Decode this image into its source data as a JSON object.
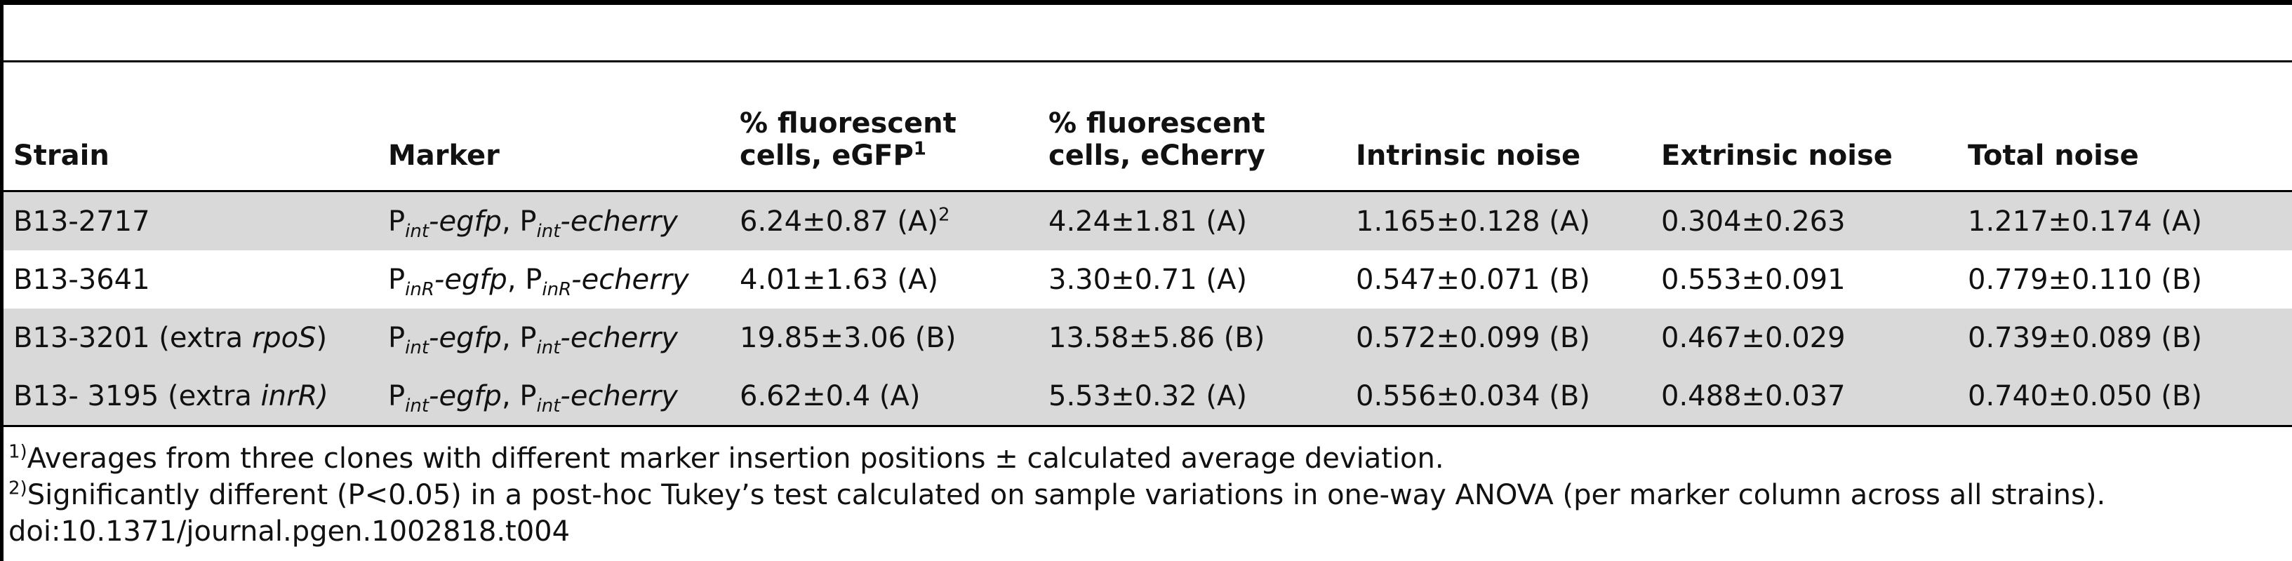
{
  "table": {
    "headers": {
      "strain": "Strain",
      "marker": "Marker",
      "egfp_line1": "% fluorescent",
      "egfp_line2": "cells, eGFP",
      "egfp_note": "1",
      "echerry_line1": "% fluorescent",
      "echerry_line2": "cells, eCherry",
      "intrinsic": "Intrinsic noise",
      "extrinsic": "Extrinsic noise",
      "total": "Total noise"
    },
    "rows": [
      {
        "strain": "B13-2717",
        "strain_italic": "",
        "strain_tail": "",
        "m_p1": "P",
        "m_sub1": "int",
        "m_gene1": "-egfp",
        "m_sep": ", ",
        "m_p2": "P",
        "m_sub2": "int",
        "m_gene2": "-echerry",
        "egfp": "6.24±0.87 (A)",
        "egfp_note": "2",
        "echerry": "4.24±1.81 (A)",
        "intrinsic": "1.165±0.128 (A)",
        "extrinsic": "0.304±0.263",
        "total": "1.217±0.174 (A)"
      },
      {
        "strain": "B13-3641",
        "strain_italic": "",
        "strain_tail": "",
        "m_p1": "P",
        "m_sub1": "inR",
        "m_gene1": "-egfp",
        "m_sep": ", ",
        "m_p2": "P",
        "m_sub2": "inR",
        "m_gene2": "-echerry",
        "egfp": "4.01±1.63 (A)",
        "egfp_note": "",
        "echerry": "3.30±0.71 (A)",
        "intrinsic": "0.547±0.071 (B)",
        "extrinsic": "0.553±0.091",
        "total": "0.779±0.110 (B)"
      },
      {
        "strain": "B13-3201 (extra ",
        "strain_italic": "rpoS",
        "strain_tail": ")",
        "m_p1": "P",
        "m_sub1": "int",
        "m_gene1": "-egfp",
        "m_sep": ", ",
        "m_p2": "P",
        "m_sub2": "int",
        "m_gene2": "-echerry",
        "egfp": "19.85±3.06 (B)",
        "egfp_note": "",
        "echerry": "13.58±5.86 (B)",
        "intrinsic": "0.572±0.099 (B)",
        "extrinsic": "0.467±0.029",
        "total": "0.739±0.089 (B)"
      },
      {
        "strain": "B13- 3195 (extra ",
        "strain_italic": "inrR)",
        "strain_tail": "",
        "m_p1": "P",
        "m_sub1": "int",
        "m_gene1": "-egfp",
        "m_sep": ", ",
        "m_p2": "P",
        "m_sub2": "int",
        "m_gene2": "-echerry",
        "egfp": "6.62±0.4 (A)",
        "egfp_note": "",
        "echerry": "5.53±0.32 (A)",
        "intrinsic": "0.556±0.034 (B)",
        "extrinsic": "0.488±0.037",
        "total": "0.740±0.050 (B)"
      }
    ]
  },
  "footnotes": {
    "note1_mark": "1)",
    "note1_text": "Averages from three clones with different marker insertion positions ± calculated average deviation.",
    "note2_mark": "2)",
    "note2_text": "Significantly different (P<0.05) in a post-hoc Tukey’s test calculated on sample variations in one-way ANOVA (per marker column across all strains).",
    "doi": "doi:10.1371/journal.pgen.1002818.t004"
  },
  "colors": {
    "row_shade": "#d9d9d9",
    "rules": "#000000",
    "text": "#111111"
  }
}
